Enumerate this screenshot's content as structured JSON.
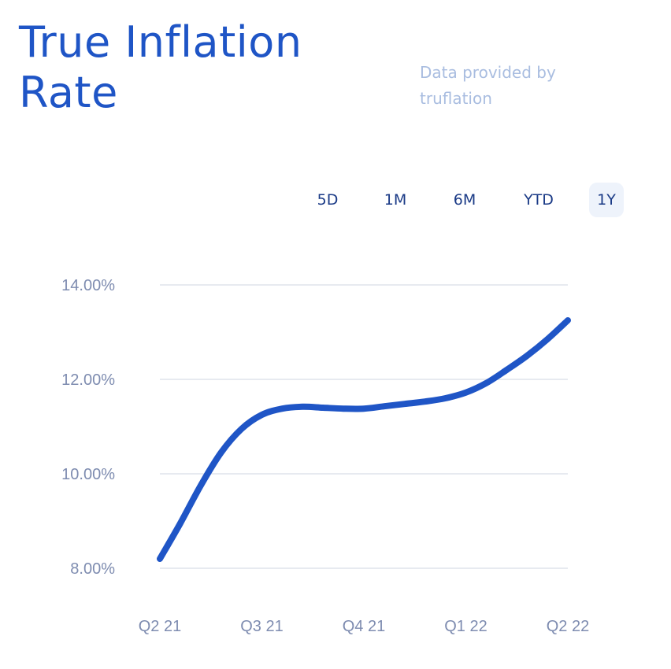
{
  "header": {
    "title": "True Inflation Rate",
    "provider": "Data provided by truflation"
  },
  "ranges": [
    {
      "label": "5D",
      "active": false
    },
    {
      "label": "1M",
      "active": false
    },
    {
      "label": "6M",
      "active": false
    },
    {
      "label": "YTD",
      "active": false
    },
    {
      "label": "1Y",
      "active": true
    }
  ],
  "colors": {
    "accent": "#1f55c6",
    "line": "#1f55c6",
    "grid": "#dfe3ec",
    "tick": "#7e8cb0"
  },
  "chart_data": {
    "type": "line",
    "title": "True Inflation Rate",
    "xlabel": "",
    "ylabel": "",
    "x_categories": [
      "Q2 21",
      "Q3 21",
      "Q4 21",
      "Q1 22",
      "Q2 22"
    ],
    "y_ticks": [
      "14.00%",
      "12.00%",
      "10.00%",
      "8.00%"
    ],
    "y_tick_values": [
      14,
      12,
      10,
      8
    ],
    "ylim": [
      8,
      14
    ],
    "grid": true,
    "legend": "none",
    "series": [
      {
        "values": [
          [
            0.0,
            8.2
          ],
          [
            0.2,
            8.95
          ],
          [
            0.4,
            9.75
          ],
          [
            0.6,
            10.45
          ],
          [
            0.8,
            10.95
          ],
          [
            1.0,
            11.25
          ],
          [
            1.2,
            11.38
          ],
          [
            1.4,
            11.42
          ],
          [
            1.6,
            11.4
          ],
          [
            1.8,
            11.38
          ],
          [
            2.0,
            11.38
          ],
          [
            2.2,
            11.43
          ],
          [
            2.4,
            11.48
          ],
          [
            2.6,
            11.53
          ],
          [
            2.8,
            11.6
          ],
          [
            3.0,
            11.72
          ],
          [
            3.2,
            11.92
          ],
          [
            3.4,
            12.2
          ],
          [
            3.6,
            12.5
          ],
          [
            3.8,
            12.85
          ],
          [
            4.0,
            13.25
          ]
        ]
      }
    ]
  }
}
